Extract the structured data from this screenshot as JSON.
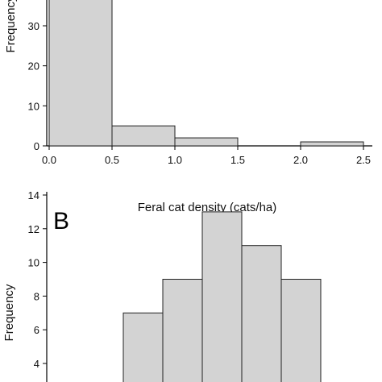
{
  "chart_data": [
    {
      "type": "bar",
      "panel_label": "",
      "xlabel": "Feral cat density (cats/ha)",
      "ylabel": "Frequency",
      "ylabel_visible": "Frequency",
      "x_ticks": [
        "0.0",
        "0.5",
        "1.0",
        "1.5",
        "2.0",
        "2.5"
      ],
      "y_ticks": [
        "0",
        "10",
        "20",
        "30"
      ],
      "bins": [
        {
          "x0": 0.0,
          "x1": 0.5,
          "value": 40
        },
        {
          "x0": 0.5,
          "x1": 1.0,
          "value": 5
        },
        {
          "x0": 1.0,
          "x1": 1.5,
          "value": 2
        },
        {
          "x0": 1.5,
          "x1": 2.0,
          "value": 0
        },
        {
          "x0": 2.0,
          "x1": 2.5,
          "value": 1
        }
      ],
      "xlim": [
        0.0,
        2.5
      ],
      "ylim": [
        0,
        37
      ],
      "bar_color": "#d3d3d3",
      "edge_color": "#222222"
    },
    {
      "type": "bar",
      "panel_label": "B",
      "xlabel": "",
      "ylabel": "Frequency",
      "y_ticks": [
        "4",
        "6",
        "8",
        "10",
        "12",
        "14"
      ],
      "bars": [
        {
          "value": 7
        },
        {
          "value": 9
        },
        {
          "value": 13
        },
        {
          "value": 11
        },
        {
          "value": 9
        }
      ],
      "ylim": [
        0,
        14
      ],
      "bar_color": "#d3d3d3",
      "edge_color": "#222222"
    }
  ]
}
